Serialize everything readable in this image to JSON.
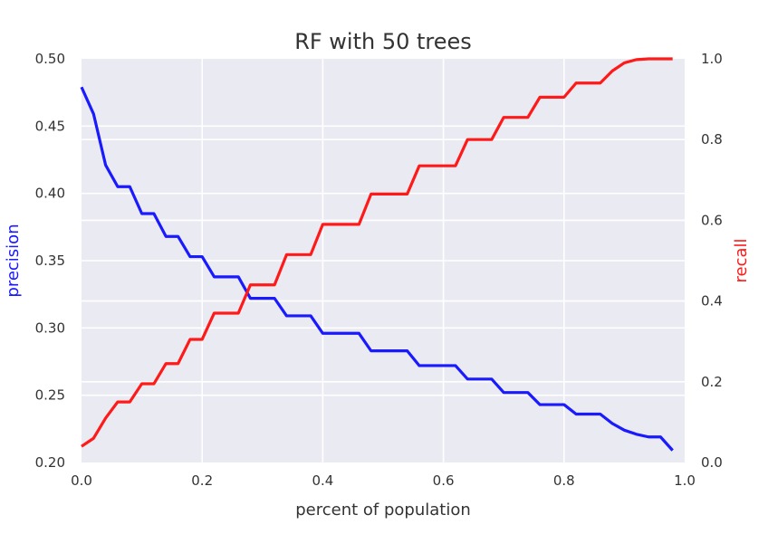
{
  "chart_data": {
    "type": "line",
    "title": "RF with 50 trees",
    "xlabel": "percent of population",
    "ylabel_left": "precision",
    "ylabel_right": "recall",
    "xlim": [
      0.0,
      1.0
    ],
    "ylim_left": [
      0.2,
      0.5
    ],
    "ylim_right": [
      0.0,
      1.0
    ],
    "x_ticks": [
      "0.0",
      "0.2",
      "0.4",
      "0.6",
      "0.8",
      "1.0"
    ],
    "y_left_ticks": [
      "0.20",
      "0.25",
      "0.30",
      "0.35",
      "0.40",
      "0.45",
      "0.50"
    ],
    "y_right_ticks": [
      "0.0",
      "0.2",
      "0.4",
      "0.6",
      "0.8",
      "1.0"
    ],
    "grid": true,
    "background": "#eaeaf2",
    "series": [
      {
        "axis": "left",
        "color": "#1a1aff",
        "x": [
          0.0,
          0.02,
          0.04,
          0.06,
          0.08,
          0.1,
          0.12,
          0.14,
          0.16,
          0.18,
          0.2,
          0.22,
          0.24,
          0.26,
          0.28,
          0.3,
          0.32,
          0.34,
          0.36,
          0.38,
          0.4,
          0.42,
          0.44,
          0.46,
          0.48,
          0.5,
          0.52,
          0.54,
          0.56,
          0.58,
          0.6,
          0.62,
          0.64,
          0.66,
          0.68,
          0.7,
          0.72,
          0.74,
          0.76,
          0.78,
          0.8,
          0.82,
          0.84,
          0.86,
          0.88,
          0.9,
          0.92,
          0.94,
          0.96,
          0.98
        ],
        "values": [
          0.479,
          0.459,
          0.421,
          0.405,
          0.405,
          0.385,
          0.385,
          0.368,
          0.368,
          0.353,
          0.353,
          0.338,
          0.338,
          0.338,
          0.322,
          0.322,
          0.322,
          0.309,
          0.309,
          0.309,
          0.296,
          0.296,
          0.296,
          0.296,
          0.283,
          0.283,
          0.283,
          0.283,
          0.272,
          0.272,
          0.272,
          0.272,
          0.262,
          0.262,
          0.262,
          0.252,
          0.252,
          0.252,
          0.243,
          0.243,
          0.243,
          0.236,
          0.236,
          0.236,
          0.229,
          0.224,
          0.221,
          0.219,
          0.219,
          0.209
        ]
      },
      {
        "axis": "right",
        "color": "#ff1a1a",
        "x": [
          0.0,
          0.02,
          0.04,
          0.06,
          0.08,
          0.1,
          0.12,
          0.14,
          0.16,
          0.18,
          0.2,
          0.22,
          0.24,
          0.26,
          0.28,
          0.3,
          0.32,
          0.34,
          0.36,
          0.38,
          0.4,
          0.42,
          0.44,
          0.46,
          0.48,
          0.5,
          0.52,
          0.54,
          0.56,
          0.58,
          0.6,
          0.62,
          0.64,
          0.66,
          0.68,
          0.7,
          0.72,
          0.74,
          0.76,
          0.78,
          0.8,
          0.82,
          0.84,
          0.86,
          0.88,
          0.9,
          0.92,
          0.94,
          0.96,
          0.98
        ],
        "values": [
          0.04,
          0.06,
          0.11,
          0.15,
          0.15,
          0.195,
          0.195,
          0.245,
          0.245,
          0.305,
          0.305,
          0.37,
          0.37,
          0.37,
          0.44,
          0.44,
          0.44,
          0.515,
          0.515,
          0.515,
          0.59,
          0.59,
          0.59,
          0.59,
          0.665,
          0.665,
          0.665,
          0.665,
          0.735,
          0.735,
          0.735,
          0.735,
          0.8,
          0.8,
          0.8,
          0.855,
          0.855,
          0.855,
          0.905,
          0.905,
          0.905,
          0.94,
          0.94,
          0.94,
          0.97,
          0.99,
          0.998,
          1.0,
          1.0,
          1.0
        ]
      }
    ]
  }
}
